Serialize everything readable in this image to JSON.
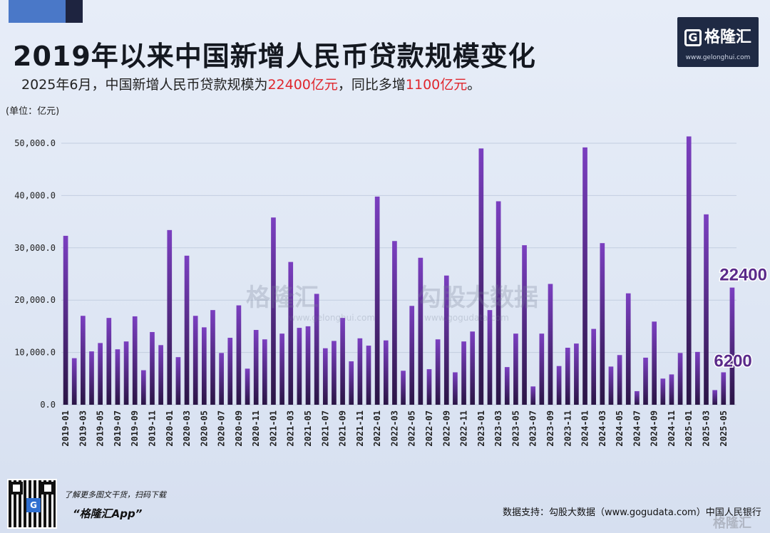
{
  "title": "2019年以来中国新增人民币贷款规模变化",
  "subtitle": {
    "prefix": "2025年6月，中国新增人民币贷款规模为",
    "value1": "22400亿元",
    "middle": "，同比多增",
    "value2": "1100亿元",
    "suffix": "。"
  },
  "unit_label": "(单位：亿元)",
  "logo": {
    "letter": "G",
    "name": "格隆汇",
    "url": "www.gelonghui.com"
  },
  "watermarks": {
    "left": {
      "name": "格隆汇",
      "url": "www.gelonghui.com"
    },
    "right": {
      "name": "勾股大数据",
      "url": "www.gogudata.com"
    }
  },
  "footer": {
    "qr_letter": "G",
    "promo": "了解更多图文干货，扫码下载",
    "app_name": "“格隆汇App”",
    "source": "数据支持：勾股大数据（www.gogudata.com）中国人民银行",
    "corner_mark": "格隆汇"
  },
  "colors": {
    "bar_top": "#7b3fc0",
    "bar_bottom": "#2a1545",
    "highlight": "#e0262d",
    "label_purple": "#5a2a8a",
    "grid": "#c3cde0"
  },
  "chart_data": {
    "type": "bar",
    "ylim": [
      0,
      55000
    ],
    "yticks": [
      "0.0",
      "10,000.0",
      "20,000.0",
      "30,000.0",
      "40,000.0",
      "50,000.0"
    ],
    "ytick_values": [
      0,
      10000,
      20000,
      30000,
      40000,
      50000
    ],
    "grid": true,
    "categories": [
      "2019-01",
      "2019-02",
      "2019-03",
      "2019-04",
      "2019-05",
      "2019-06",
      "2019-07",
      "2019-08",
      "2019-09",
      "2019-10",
      "2019-11",
      "2019-12",
      "2020-01",
      "2020-02",
      "2020-03",
      "2020-04",
      "2020-05",
      "2020-06",
      "2020-07",
      "2020-08",
      "2020-09",
      "2020-10",
      "2020-11",
      "2020-12",
      "2021-01",
      "2021-02",
      "2021-03",
      "2021-04",
      "2021-05",
      "2021-06",
      "2021-07",
      "2021-08",
      "2021-09",
      "2021-10",
      "2021-11",
      "2021-12",
      "2022-01",
      "2022-02",
      "2022-03",
      "2022-04",
      "2022-05",
      "2022-06",
      "2022-07",
      "2022-08",
      "2022-09",
      "2022-10",
      "2022-11",
      "2022-12",
      "2023-01",
      "2023-02",
      "2023-03",
      "2023-04",
      "2023-05",
      "2023-06",
      "2023-07",
      "2023-08",
      "2023-09",
      "2023-10",
      "2023-11",
      "2023-12",
      "2024-01",
      "2024-02",
      "2024-03",
      "2024-04",
      "2024-05",
      "2024-06",
      "2024-07",
      "2024-08",
      "2024-09",
      "2024-10",
      "2024-11",
      "2024-12",
      "2025-01",
      "2025-02",
      "2025-03",
      "2025-04",
      "2025-05",
      "2025-06"
    ],
    "xtick_labels": [
      "2019-01",
      "2019-03",
      "2019-05",
      "2019-07",
      "2019-09",
      "2019-11",
      "2020-01",
      "2020-03",
      "2020-05",
      "2020-07",
      "2020-09",
      "2020-11",
      "2021-01",
      "2021-03",
      "2021-05",
      "2021-07",
      "2021-09",
      "2021-11",
      "2022-01",
      "2022-03",
      "2022-05",
      "2022-07",
      "2022-09",
      "2022-11",
      "2023-01",
      "2023-03",
      "2023-05",
      "2023-07",
      "2023-09",
      "2023-11",
      "2024-01",
      "2024-03",
      "2024-05",
      "2024-07",
      "2024-09",
      "2024-11",
      "2025-01",
      "2025-03",
      "2025-05"
    ],
    "values": [
      32300,
      8900,
      17000,
      10200,
      11800,
      16600,
      10600,
      12100,
      16900,
      6600,
      13900,
      11400,
      33400,
      9100,
      28500,
      17000,
      14800,
      18100,
      9900,
      12800,
      19000,
      6900,
      14300,
      12500,
      35800,
      13600,
      27300,
      14700,
      15000,
      21200,
      10800,
      12200,
      16600,
      8300,
      12700,
      11300,
      39800,
      12300,
      31300,
      6500,
      18900,
      28100,
      6800,
      12500,
      24700,
      6200,
      12100,
      14000,
      49000,
      18100,
      38900,
      7200,
      13600,
      30500,
      3500,
      13600,
      23100,
      7400,
      10900,
      11700,
      49200,
      14500,
      30900,
      7300,
      9500,
      21300,
      2600,
      9000,
      15900,
      5000,
      5800,
      9900,
      51300,
      10100,
      36400,
      2800,
      6200,
      22400
    ],
    "annotations": [
      {
        "label": "22400",
        "category": "2025-06",
        "value": 22400
      },
      {
        "label": "6200",
        "category": "2025-05",
        "value": 6200
      }
    ]
  }
}
